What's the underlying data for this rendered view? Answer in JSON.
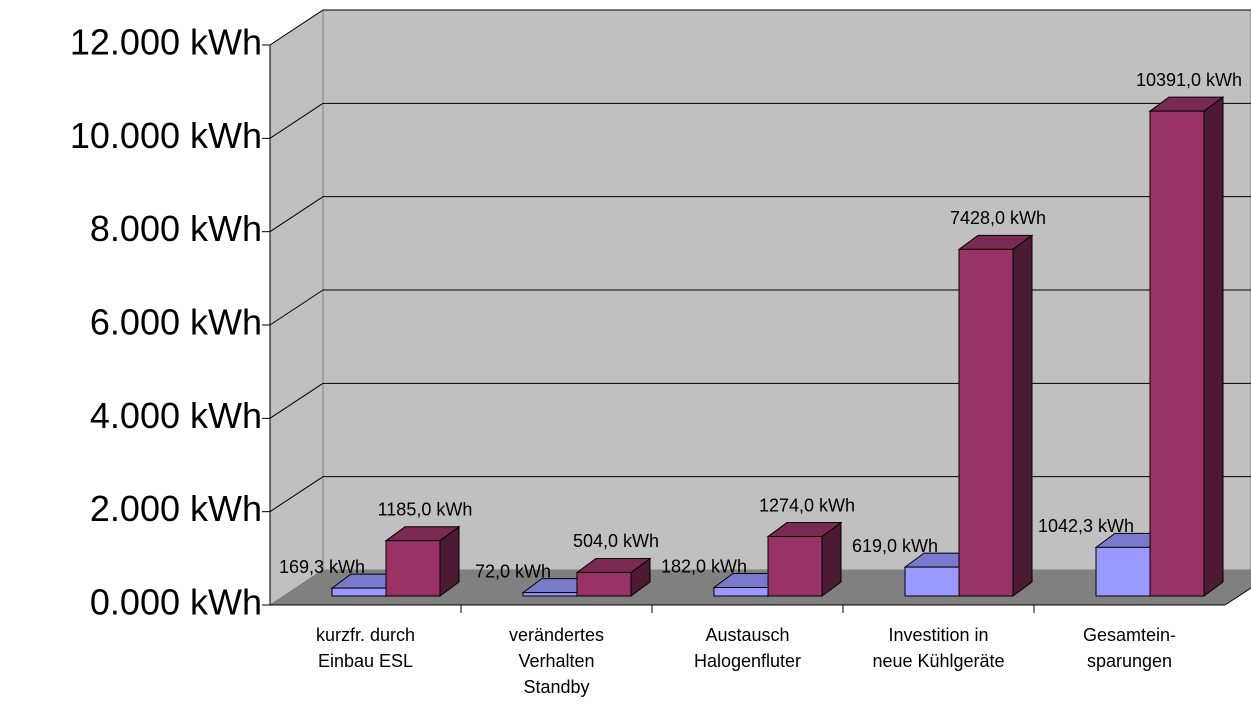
{
  "chart_data": {
    "type": "bar3d",
    "categories": [
      "kurzfr. durch\nEinbau ESL",
      "verändertes\nVerhalten\nStandby",
      "Austausch\nHalogenfluter",
      "Investition in\nneue Kühlgeräte",
      "Gesamtein-\nsparungen"
    ],
    "series": [
      {
        "color": "#9999ff",
        "values": [
          169.3,
          72,
          182,
          619,
          1042.3
        ],
        "value_labels": [
          "169,3 kWh",
          "72,0 kWh",
          "182,0 kWh",
          "619,0 kWh",
          "1042,3 kWh"
        ]
      },
      {
        "color": "#993366",
        "values": [
          1185,
          504,
          1274,
          7428,
          10391
        ],
        "value_labels": [
          "1185,0 kWh",
          "504,0 kWh",
          "1274,0 kWh",
          "7428,0 kWh",
          "10391,0 kWh"
        ]
      }
    ],
    "ylim": [
      0,
      12000
    ],
    "yticks": [
      {
        "value": 0,
        "label": "0.000 kWh"
      },
      {
        "value": 2000,
        "label": "2.000 kWh"
      },
      {
        "value": 4000,
        "label": "4.000 kWh"
      },
      {
        "value": 6000,
        "label": "6.000 kWh"
      },
      {
        "value": 8000,
        "label": "8.000 kWh"
      },
      {
        "value": 10000,
        "label": "10.000 kWh"
      },
      {
        "value": 12000,
        "label": "12.000 kWh"
      }
    ],
    "grid": true
  }
}
